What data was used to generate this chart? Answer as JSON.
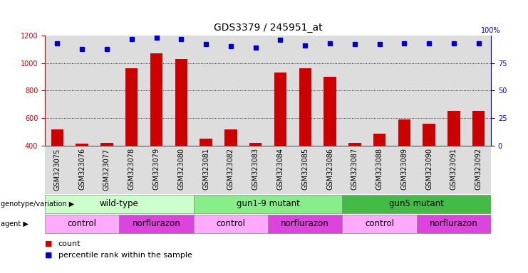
{
  "title": "GDS3379 / 245951_at",
  "samples": [
    "GSM323075",
    "GSM323076",
    "GSM323077",
    "GSM323078",
    "GSM323079",
    "GSM323080",
    "GSM323081",
    "GSM323082",
    "GSM323083",
    "GSM323084",
    "GSM323085",
    "GSM323086",
    "GSM323087",
    "GSM323088",
    "GSM323089",
    "GSM323090",
    "GSM323091",
    "GSM323092"
  ],
  "counts": [
    520,
    415,
    420,
    960,
    1070,
    1030,
    450,
    520,
    420,
    930,
    960,
    900,
    420,
    485,
    590,
    560,
    655,
    655
  ],
  "percentile_ranks": [
    93,
    88,
    88,
    97,
    98,
    97,
    92,
    90,
    89,
    96,
    91,
    93,
    92,
    92,
    93,
    93,
    93,
    93
  ],
  "ylim_left": [
    400,
    1200
  ],
  "ylim_right": [
    0,
    100
  ],
  "bar_color": "#cc0000",
  "dot_color": "#0000cc",
  "bar_width": 0.5,
  "genotype_groups": [
    {
      "label": "wild-type",
      "start": 0,
      "end": 5,
      "color": "#ccffcc"
    },
    {
      "label": "gun1-9 mutant",
      "start": 6,
      "end": 11,
      "color": "#88ee88"
    },
    {
      "label": "gun5 mutant",
      "start": 12,
      "end": 17,
      "color": "#44bb44"
    }
  ],
  "agent_groups": [
    {
      "label": "control",
      "start": 0,
      "end": 2,
      "color": "#ffaaff"
    },
    {
      "label": "norflurazon",
      "start": 3,
      "end": 5,
      "color": "#dd44dd"
    },
    {
      "label": "control",
      "start": 6,
      "end": 8,
      "color": "#ffaaff"
    },
    {
      "label": "norflurazon",
      "start": 9,
      "end": 11,
      "color": "#dd44dd"
    },
    {
      "label": "control",
      "start": 12,
      "end": 14,
      "color": "#ffaaff"
    },
    {
      "label": "norflurazon",
      "start": 15,
      "end": 17,
      "color": "#dd44dd"
    }
  ],
  "legend_count_color": "#cc0000",
  "legend_dot_color": "#0000cc",
  "background_color": "#ffffff",
  "panel_bg_color": "#dddddd",
  "title_fontsize": 10,
  "tick_fontsize": 7,
  "label_fontsize": 8.5
}
